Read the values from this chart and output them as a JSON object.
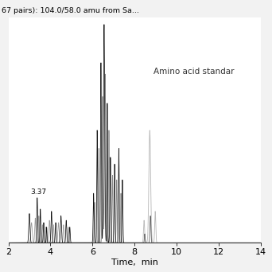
{
  "title": "67 pairs): 104.0/58.0 amu from Sa...",
  "xlabel": "Time,  min",
  "annotation": "Amino acid standar",
  "annotation_label": "3.37",
  "xlim": [
    2,
    14
  ],
  "ylim": [
    0,
    1.0
  ],
  "xticks": [
    2,
    4,
    6,
    8,
    10,
    12,
    14
  ],
  "figsize": [
    3.42,
    3.42
  ],
  "dpi": 100
}
